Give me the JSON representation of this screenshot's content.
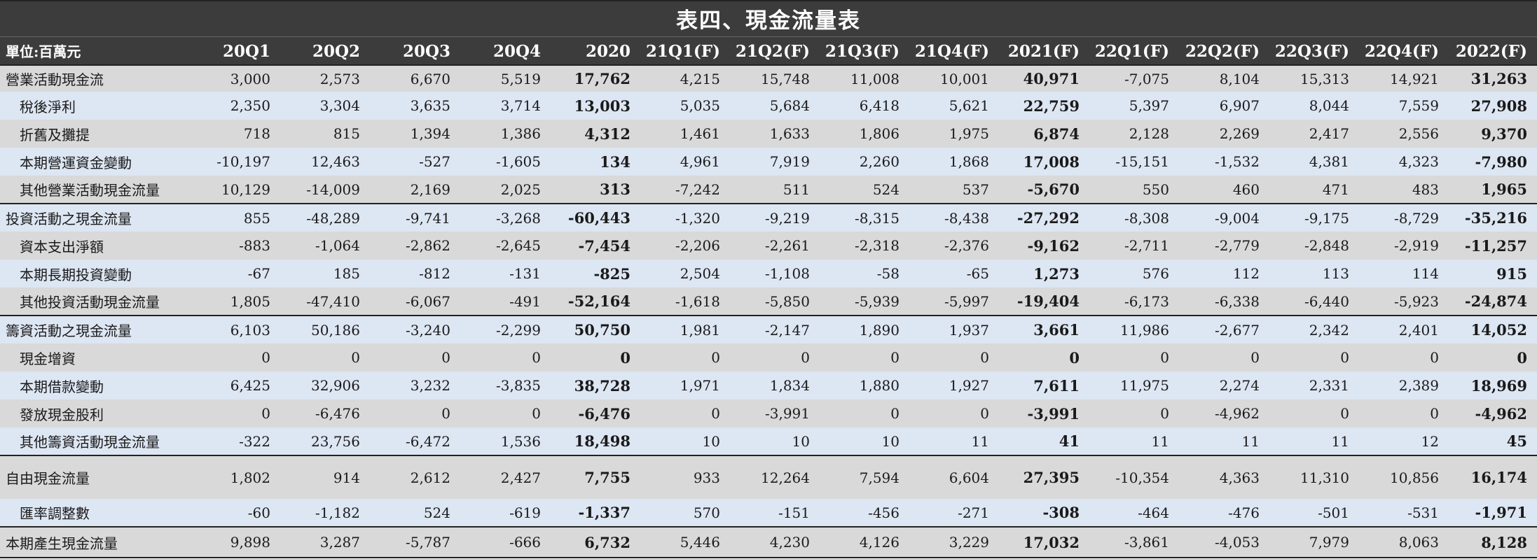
{
  "title": "表四、現金流量表",
  "unit": "單位:百萬元",
  "columns": [
    "20Q1",
    "20Q2",
    "20Q3",
    "20Q4",
    "2020",
    "21Q1(F)",
    "21Q2(F)",
    "21Q3(F)",
    "21Q4(F)",
    "2021(F)",
    "22Q1(F)",
    "22Q2(F)",
    "22Q3(F)",
    "22Q4(F)",
    "2022(F)"
  ],
  "bold_columns": [
    4,
    9,
    14
  ],
  "rows": [
    {
      "label": "營業活動現金流",
      "kind": "section",
      "values": [
        "3,000",
        "2,573",
        "6,670",
        "5,519",
        "17,762",
        "4,215",
        "15,748",
        "11,008",
        "10,001",
        "40,971",
        "-7,075",
        "8,104",
        "15,313",
        "14,921",
        "31,263"
      ]
    },
    {
      "label": "稅後淨利",
      "kind": "sub",
      "values": [
        "2,350",
        "3,304",
        "3,635",
        "3,714",
        "13,003",
        "5,035",
        "5,684",
        "6,418",
        "5,621",
        "22,759",
        "5,397",
        "6,907",
        "8,044",
        "7,559",
        "27,908"
      ]
    },
    {
      "label": "折舊及攤提",
      "kind": "sub",
      "values": [
        "718",
        "815",
        "1,394",
        "1,386",
        "4,312",
        "1,461",
        "1,633",
        "1,806",
        "1,975",
        "6,874",
        "2,128",
        "2,269",
        "2,417",
        "2,556",
        "9,370"
      ]
    },
    {
      "label": "本期營運資金變動",
      "kind": "sub",
      "values": [
        "-10,197",
        "12,463",
        "-527",
        "-1,605",
        "134",
        "4,961",
        "7,919",
        "2,260",
        "1,868",
        "17,008",
        "-15,151",
        "-1,532",
        "4,381",
        "4,323",
        "-7,980"
      ]
    },
    {
      "label": "其他營業活動現金流量",
      "kind": "sub",
      "values": [
        "10,129",
        "-14,009",
        "2,169",
        "2,025",
        "313",
        "-7,242",
        "511",
        "524",
        "537",
        "-5,670",
        "550",
        "460",
        "471",
        "483",
        "1,965"
      ]
    },
    {
      "label": "投資活動之現金流量",
      "kind": "section",
      "values": [
        "855",
        "-48,289",
        "-9,741",
        "-3,268",
        "-60,443",
        "-1,320",
        "-9,219",
        "-8,315",
        "-8,438",
        "-27,292",
        "-8,308",
        "-9,004",
        "-9,175",
        "-8,729",
        "-35,216"
      ]
    },
    {
      "label": "資本支出淨額",
      "kind": "sub",
      "values": [
        "-883",
        "-1,064",
        "-2,862",
        "-2,645",
        "-7,454",
        "-2,206",
        "-2,261",
        "-2,318",
        "-2,376",
        "-9,162",
        "-2,711",
        "-2,779",
        "-2,848",
        "-2,919",
        "-11,257"
      ]
    },
    {
      "label": "本期長期投資變動",
      "kind": "sub",
      "values": [
        "-67",
        "185",
        "-812",
        "-131",
        "-825",
        "2,504",
        "-1,108",
        "-58",
        "-65",
        "1,273",
        "576",
        "112",
        "113",
        "114",
        "915"
      ]
    },
    {
      "label": "其他投資活動現金流量",
      "kind": "sub",
      "values": [
        "1,805",
        "-47,410",
        "-6,067",
        "-491",
        "-52,164",
        "-1,618",
        "-5,850",
        "-5,939",
        "-5,997",
        "-19,404",
        "-6,173",
        "-6,338",
        "-6,440",
        "-5,923",
        "-24,874"
      ]
    },
    {
      "label": "籌資活動之現金流量",
      "kind": "section",
      "values": [
        "6,103",
        "50,186",
        "-3,240",
        "-2,299",
        "50,750",
        "1,981",
        "-2,147",
        "1,890",
        "1,937",
        "3,661",
        "11,986",
        "-2,677",
        "2,342",
        "2,401",
        "14,052"
      ]
    },
    {
      "label": "現金增資",
      "kind": "sub",
      "values": [
        "0",
        "0",
        "0",
        "0",
        "0",
        "0",
        "0",
        "0",
        "0",
        "0",
        "0",
        "0",
        "0",
        "0",
        "0"
      ]
    },
    {
      "label": "本期借款變動",
      "kind": "sub",
      "values": [
        "6,425",
        "32,906",
        "3,232",
        "-3,835",
        "38,728",
        "1,971",
        "1,834",
        "1,880",
        "1,927",
        "7,611",
        "11,975",
        "2,274",
        "2,331",
        "2,389",
        "18,969"
      ]
    },
    {
      "label": "發放現金股利",
      "kind": "sub",
      "values": [
        "0",
        "-6,476",
        "0",
        "0",
        "-6,476",
        "0",
        "-3,991",
        "0",
        "0",
        "-3,991",
        "0",
        "-4,962",
        "0",
        "0",
        "-4,962"
      ]
    },
    {
      "label": "其他籌資活動現金流量",
      "kind": "sub",
      "values": [
        "-322",
        "23,756",
        "-6,472",
        "1,536",
        "18,498",
        "10",
        "10",
        "10",
        "11",
        "41",
        "11",
        "11",
        "11",
        "12",
        "45"
      ]
    },
    {
      "label": "自由現金流量",
      "kind": "section",
      "values": [
        "1,802",
        "914",
        "2,612",
        "2,427",
        "7,755",
        "933",
        "12,264",
        "7,594",
        "6,604",
        "27,395",
        "-10,354",
        "4,363",
        "11,310",
        "10,856",
        "16,174"
      ]
    },
    {
      "label": "匯率調整數",
      "kind": "sub",
      "values": [
        "-60",
        "-1,182",
        "524",
        "-619",
        "-1,337",
        "570",
        "-151",
        "-456",
        "-271",
        "-308",
        "-464",
        "-476",
        "-501",
        "-531",
        "-1,971"
      ]
    },
    {
      "label": "本期產生現金流量",
      "kind": "section",
      "values": [
        "9,898",
        "3,287",
        "-5,787",
        "-666",
        "6,732",
        "5,446",
        "4,230",
        "4,126",
        "3,229",
        "17,032",
        "-3,861",
        "-4,053",
        "7,979",
        "8,063",
        "8,128"
      ]
    }
  ]
}
